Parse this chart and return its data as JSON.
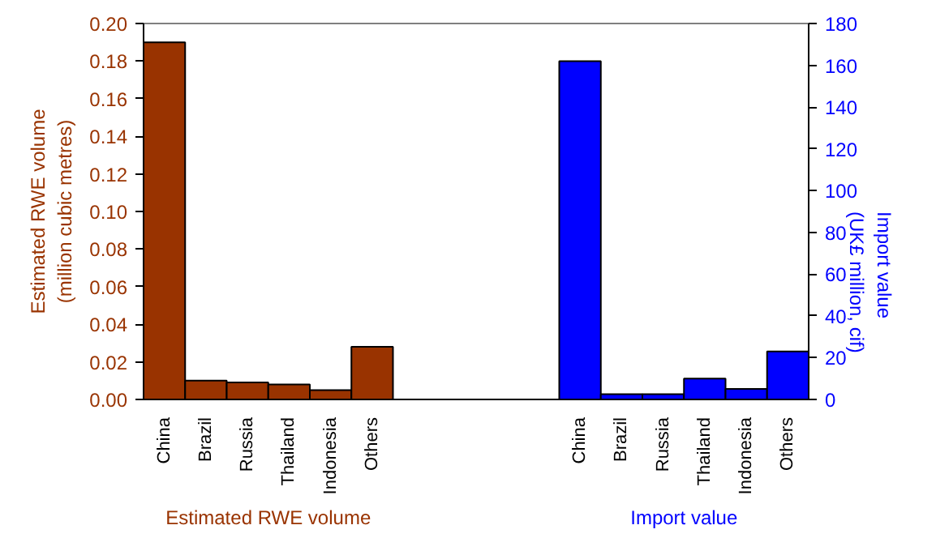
{
  "chart_data": {
    "type": "bar",
    "ylabel": "Estimated RWE volume\n(million cubic metres)",
    "y2label": "Import value\n(UK£ million, cif)",
    "categories": [
      "China",
      "Brazil",
      "Russia",
      "Thailand",
      "Indonesia",
      "Others",
      null,
      null,
      null,
      null,
      "China",
      "Brazil",
      "Russia",
      "Thailand",
      "Indonesia",
      "Others"
    ],
    "series": [
      {
        "name": "Estimated RWE volume",
        "color": "#993300",
        "values": [
          0.19,
          0.01,
          0.009,
          0.008,
          0.005,
          0.028,
          null,
          null,
          null,
          null,
          null,
          null,
          null,
          null,
          null,
          null
        ]
      },
      {
        "name": "Import value",
        "color": "#0000ff",
        "axis": "y2",
        "values": [
          null,
          null,
          null,
          null,
          null,
          null,
          null,
          null,
          null,
          null,
          162,
          2.5,
          2.5,
          10,
          5,
          23
        ]
      }
    ],
    "ylim": [
      0,
      0.2
    ],
    "yticks": [
      {
        "value": 0,
        "label": "0.00"
      },
      {
        "value": 0.02,
        "label": "0.02"
      },
      {
        "value": 0.04,
        "label": "0.04"
      },
      {
        "value": 0.06,
        "label": "0.06"
      },
      {
        "value": 0.08,
        "label": "0.08"
      },
      {
        "value": 0.1,
        "label": "0.10"
      },
      {
        "value": 0.12,
        "label": "0.12"
      },
      {
        "value": 0.14,
        "label": "0.14"
      },
      {
        "value": 0.16,
        "label": "0.16"
      },
      {
        "value": 0.18,
        "label": "0.18"
      },
      {
        "value": 0.2,
        "label": "0.20"
      }
    ],
    "y2lim": [
      0,
      180
    ],
    "y2ticks": [
      0,
      20,
      40,
      60,
      80,
      100,
      120,
      140,
      160,
      180
    ],
    "grid": false
  }
}
